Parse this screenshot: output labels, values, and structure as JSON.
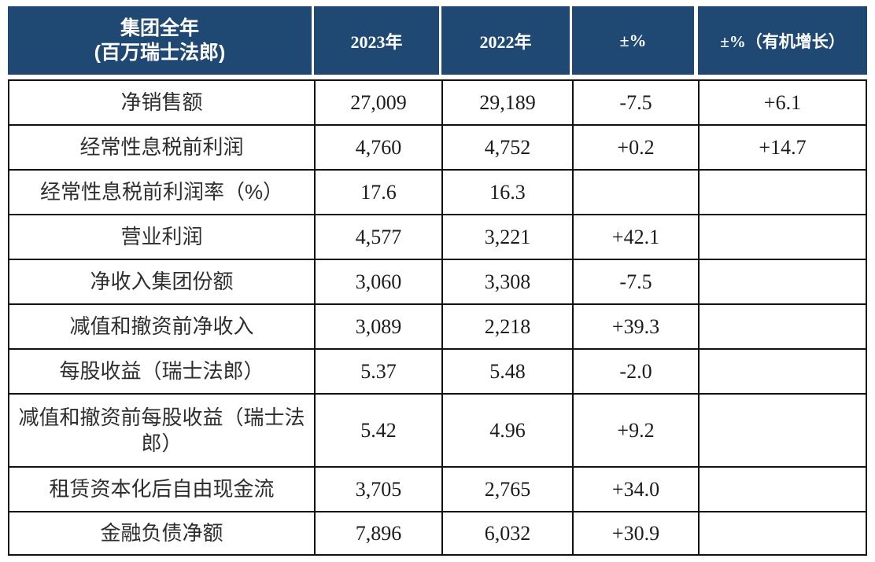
{
  "colors": {
    "header_bg": "#1f4973",
    "header_text": "#ffffff",
    "grid_border": "#111111",
    "label_text": "#2e2e2e",
    "number_text": "#1c1c1c",
    "page_bg": "#ffffff"
  },
  "table": {
    "header": {
      "group_title": "集团全年",
      "group_unit": "(百万瑞士法郎)",
      "col_2023": "2023年",
      "col_2022": "2022年",
      "col_pct": "±%",
      "col_pct_organic": "±%（有机增长）"
    },
    "rows": [
      {
        "label": "净销售额",
        "y2023": "27,009",
        "y2022": "29,189",
        "pct": "-7.5",
        "organic": "+6.1"
      },
      {
        "label": "经常性息税前利润",
        "y2023": "4,760",
        "y2022": "4,752",
        "pct": "+0.2",
        "organic": "+14.7"
      },
      {
        "label": "经常性息税前利润率（%）",
        "y2023": "17.6",
        "y2022": "16.3",
        "pct": "",
        "organic": ""
      },
      {
        "label": "营业利润",
        "y2023": "4,577",
        "y2022": "3,221",
        "pct": "+42.1",
        "organic": ""
      },
      {
        "label": "净收入集团份额",
        "y2023": "3,060",
        "y2022": "3,308",
        "pct": "-7.5",
        "organic": ""
      },
      {
        "label": "减值和撤资前净收入",
        "y2023": "3,089",
        "y2022": "2,218",
        "pct": "+39.3",
        "organic": ""
      },
      {
        "label": "每股收益（瑞士法郎）",
        "y2023": "5.37",
        "y2022": "5.48",
        "pct": "-2.0",
        "organic": ""
      },
      {
        "label": "减值和撤资前每股收益（瑞士法郎）",
        "y2023": "5.42",
        "y2022": "4.96",
        "pct": "+9.2",
        "organic": ""
      },
      {
        "label": "租赁资本化后自由现金流",
        "y2023": "3,705",
        "y2022": "2,765",
        "pct": "+34.0",
        "organic": ""
      },
      {
        "label": "金融负债净额",
        "y2023": "7,896",
        "y2022": "6,032",
        "pct": "+30.9",
        "organic": ""
      }
    ]
  }
}
